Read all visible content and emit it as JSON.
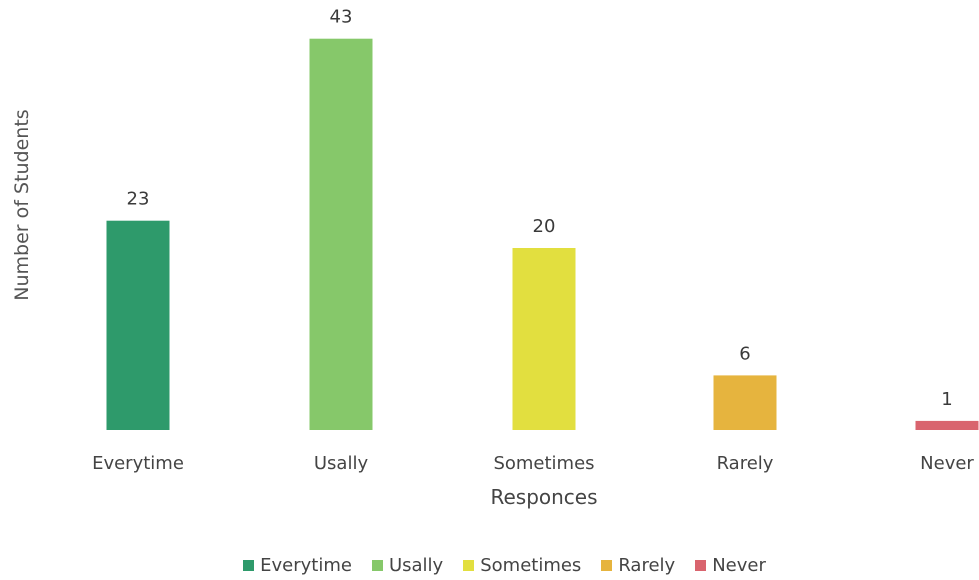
{
  "chart_data": {
    "type": "bar",
    "title": "",
    "xlabel": "Responces",
    "ylabel": "Number of Students",
    "categories": [
      "Everytime",
      "Usally",
      "Sometimes",
      "Rarely",
      "Never"
    ],
    "values": [
      23,
      43,
      20,
      6,
      1
    ],
    "colors": [
      "#2e9a6b",
      "#86c86a",
      "#e2df3f",
      "#e6b43e",
      "#d9646e"
    ],
    "ylim": [
      0,
      45
    ],
    "grid": false,
    "data_labels": true,
    "legend_position": "bottom",
    "legend": [
      "Everytime",
      "Usally",
      "Sometimes",
      "Rarely",
      "Never"
    ]
  }
}
